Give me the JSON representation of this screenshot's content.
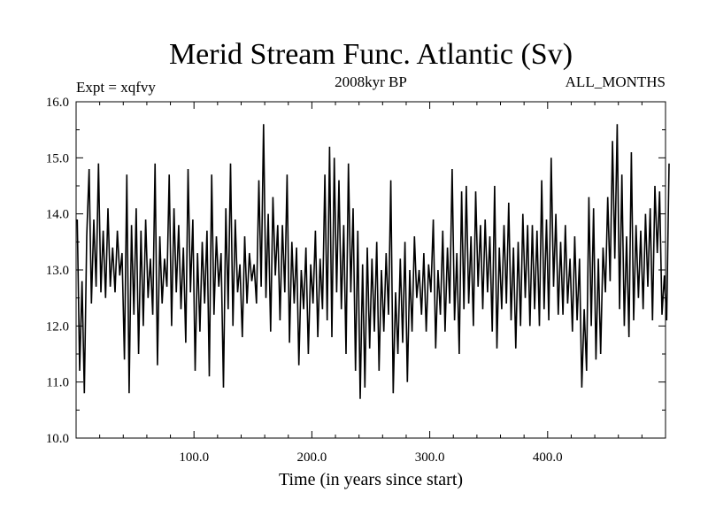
{
  "chart_data": {
    "type": "line",
    "title": "Merid Stream Func. Atlantic (Sv)",
    "left_note": "Expt = xqfvy",
    "center_note": "2008kyr BP",
    "right_note": "ALL_MONTHS",
    "xlabel": "Time (in years since start)",
    "ylabel": "",
    "xlim": [
      0,
      500
    ],
    "ylim": [
      10.0,
      16.0
    ],
    "xticks": [
      100,
      200,
      300,
      400
    ],
    "xtick_labels": [
      "100.0",
      "200.0",
      "300.0",
      "400.0"
    ],
    "yticks": [
      10,
      11,
      12,
      13,
      14,
      15,
      16
    ],
    "ytick_labels": [
      "10.0",
      "11.0",
      "12.0",
      "13.0",
      "14.0",
      "15.0",
      "16.0"
    ],
    "series": [
      {
        "name": "Merid Stream Func. Atlantic",
        "color": "#000000",
        "x_start": 1,
        "x_step": 2,
        "values": [
          13.9,
          11.2,
          12.8,
          10.8,
          13.6,
          14.8,
          12.4,
          13.9,
          12.7,
          14.9,
          12.6,
          13.7,
          12.5,
          14.1,
          12.7,
          13.4,
          12.6,
          13.7,
          12.9,
          13.3,
          11.4,
          14.7,
          10.8,
          13.8,
          12.2,
          14.1,
          11.5,
          13.7,
          12.0,
          13.9,
          12.5,
          13.2,
          12.2,
          14.9,
          11.3,
          13.6,
          12.4,
          13.2,
          12.7,
          14.7,
          12.0,
          14.1,
          12.6,
          13.8,
          12.3,
          13.4,
          11.7,
          14.8,
          12.6,
          13.9,
          11.2,
          13.3,
          11.9,
          13.5,
          12.4,
          13.7,
          11.1,
          14.7,
          12.2,
          13.6,
          12.7,
          13.3,
          10.9,
          14.1,
          12.3,
          14.9,
          12.0,
          13.9,
          12.6,
          13.1,
          11.8,
          13.6,
          12.4,
          13.3,
          12.8,
          13.1,
          12.4,
          14.6,
          12.7,
          15.6,
          12.5,
          14.0,
          11.9,
          14.3,
          12.9,
          13.8,
          12.1,
          13.8,
          12.6,
          14.7,
          11.7,
          13.5,
          12.4,
          13.4,
          11.3,
          13.0,
          12.3,
          13.4,
          11.5,
          13.1,
          12.4,
          13.7,
          11.8,
          13.2,
          12.3,
          14.7,
          12.1,
          15.2,
          11.8,
          15.0,
          12.6,
          14.6,
          12.3,
          13.8,
          11.5,
          14.9,
          12.6,
          14.1,
          11.2,
          13.7,
          10.7,
          13.1,
          10.9,
          13.4,
          11.6,
          13.2,
          11.9,
          13.5,
          11.2,
          13.0,
          11.9,
          13.3,
          12.2,
          14.6,
          10.8,
          12.6,
          11.5,
          13.2,
          11.7,
          13.5,
          11.0,
          13.0,
          11.9,
          13.6,
          12.5,
          13.0,
          12.2,
          13.3,
          11.9,
          13.1,
          12.6,
          13.9,
          11.6,
          13.0,
          12.2,
          13.7,
          11.9,
          13.4,
          12.4,
          14.8,
          12.1,
          13.3,
          11.5,
          14.4,
          12.3,
          14.5,
          12.4,
          13.6,
          12.0,
          14.4,
          12.7,
          13.8,
          12.3,
          13.9,
          12.6,
          13.6,
          11.9,
          14.5,
          11.6,
          13.4,
          12.3,
          13.8,
          12.4,
          14.2,
          12.1,
          13.4,
          11.6,
          13.5,
          12.0,
          14.0,
          12.5,
          13.8,
          12.0,
          13.8,
          12.3,
          13.7,
          12.0,
          14.6,
          12.3,
          13.9,
          12.1,
          15.0,
          12.7,
          14.0,
          12.2,
          13.5,
          12.2,
          13.8,
          12.4,
          13.2,
          11.9,
          13.6,
          12.1,
          13.2,
          10.9,
          12.3,
          11.2,
          14.3,
          12.0,
          14.1,
          11.4,
          13.2,
          11.5,
          13.4,
          12.6,
          14.3,
          12.8,
          15.3,
          13.2,
          15.6,
          12.3,
          14.7,
          12.0,
          13.6,
          11.8,
          15.1,
          12.1,
          13.8,
          12.5,
          13.7,
          12.3,
          14.0,
          12.7,
          14.1,
          12.1,
          14.5,
          13.3,
          14.4,
          12.2,
          12.9,
          12.1,
          14.9
        ]
      }
    ]
  }
}
